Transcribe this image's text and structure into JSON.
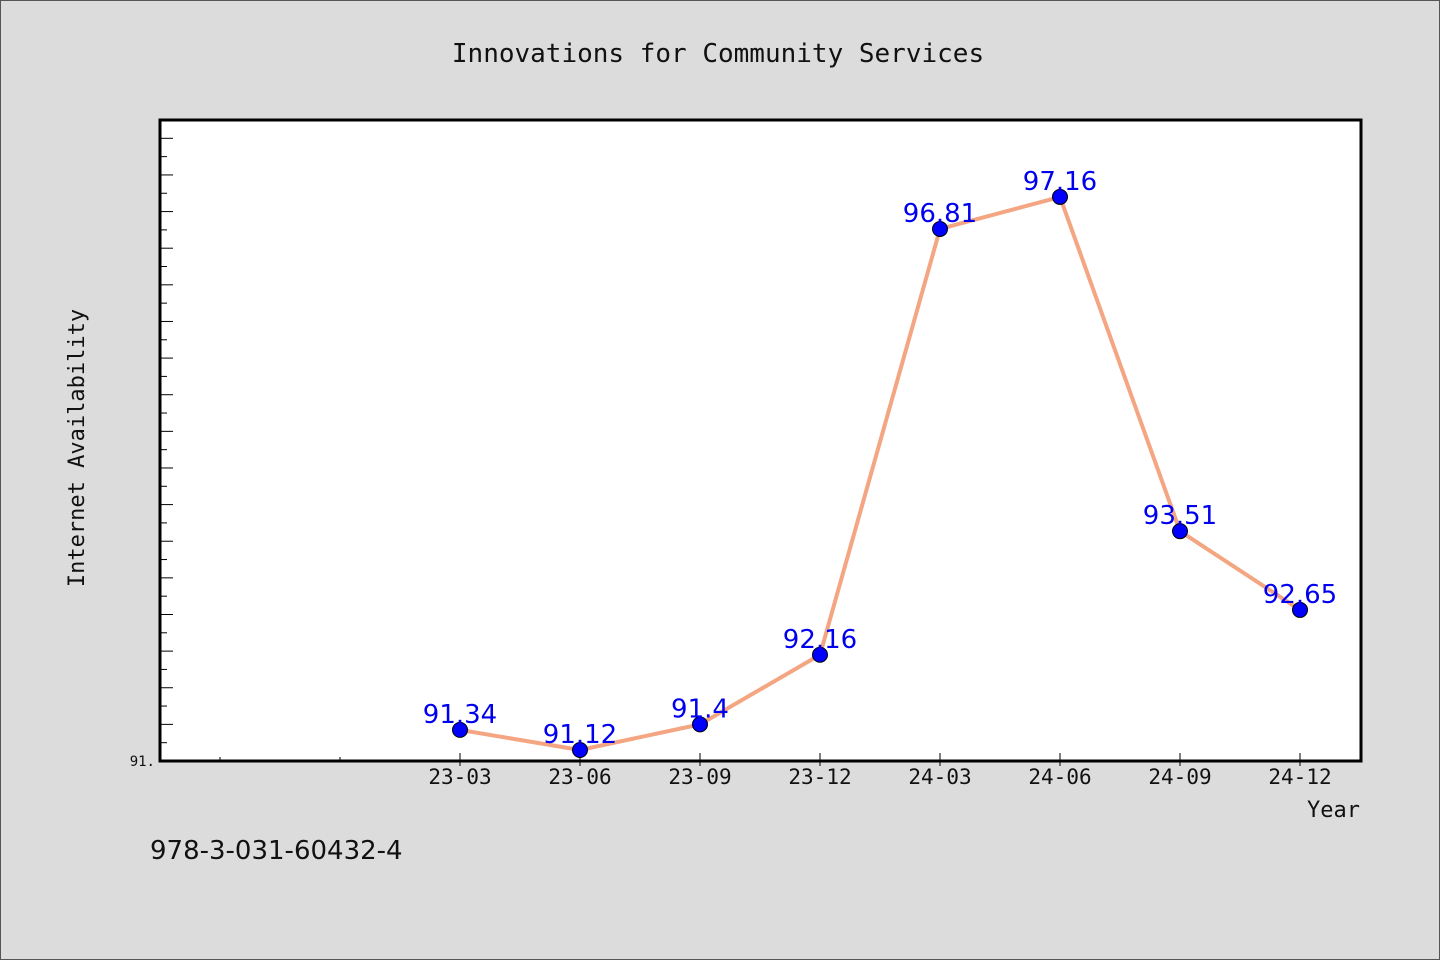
{
  "footer": {
    "isbn": "978-3-031-60432-4"
  },
  "chart_data": {
    "type": "line",
    "title": "Innovations for Community Services",
    "xlabel": "Year",
    "ylabel": "Internet Availability",
    "categories": [
      "23-03",
      "23-06",
      "23-09",
      "23-12",
      "24-03",
      "24-06",
      "24-09",
      "24-12"
    ],
    "values": [
      91.34,
      91.12,
      91.4,
      92.16,
      96.81,
      97.16,
      93.51,
      92.65
    ],
    "data_labels": [
      "91.34",
      "91.12",
      "91.4",
      "92.16",
      "96.81",
      "97.16",
      "93.51",
      "92.65"
    ],
    "ytick_label": "91.",
    "ylim": [
      91.0,
      98.0
    ],
    "grid": false,
    "colors": {
      "line": "#f4a582",
      "marker": "#0000ff",
      "label": "#0000ee",
      "plot_bg": "#ffffff",
      "figure_bg": "#dcdcdc"
    }
  }
}
